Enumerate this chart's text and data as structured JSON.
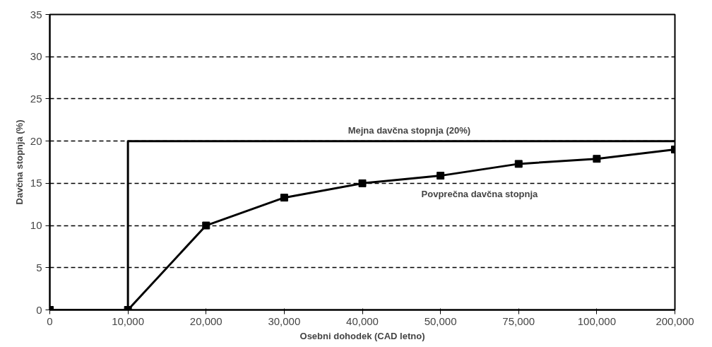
{
  "chart_data": {
    "type": "line",
    "xlabel": "Osebni dohodek (CAD letno)",
    "ylabel": "Davčna stopnja (%)",
    "categories": [
      "0",
      "10,000",
      "20,000",
      "30,000",
      "40,000",
      "50,000",
      "75,000",
      "100,000",
      "200,000"
    ],
    "series": [
      {
        "name": "Mejna davčna stopnja (20%)",
        "type": "step",
        "color": "#000000",
        "marker": "none",
        "values": [
          0,
          20,
          20,
          20,
          20,
          20,
          20,
          20,
          20
        ]
      },
      {
        "name": "Povprečna davčna stopnja",
        "color": "#000000",
        "marker": "square",
        "values": [
          0,
          0,
          10,
          13.3,
          15,
          15.9,
          17.3,
          17.9,
          19
        ]
      }
    ],
    "ylim": [
      0,
      35
    ],
    "yticks": [
      0,
      5,
      10,
      15,
      20,
      25,
      30,
      35
    ],
    "grid": "y",
    "legend": false,
    "line_style": "solid"
  }
}
